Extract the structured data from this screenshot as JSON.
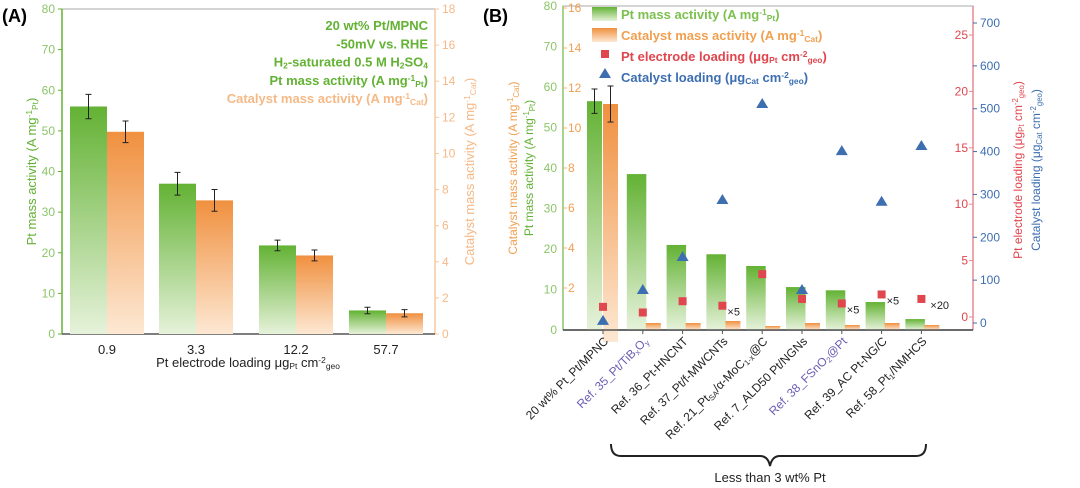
{
  "colors": {
    "green": "#63b234",
    "orange": "#f0903f",
    "red": "#e0464e",
    "blue": "#3c6eb0",
    "purple": "#6a5fb3",
    "black": "#222222"
  },
  "chart_data": [
    {
      "panel_label": "(A)",
      "type": "bar",
      "categories": [
        "0.9",
        "3.3",
        "12.2",
        "57.7"
      ],
      "xlabel": [
        {
          "t": "Pt electrode loading μg"
        },
        {
          "t": "Pt",
          "s": "sub"
        },
        {
          "t": " cm"
        },
        {
          "t": "-2",
          "s": "sup"
        },
        {
          "t": "geo",
          "s": "sub"
        }
      ],
      "ylabel_left": [
        {
          "t": "Pt mass activity (A mg"
        },
        {
          "t": "-1",
          "s": "sup"
        },
        {
          "t": "Pt",
          "s": "sub"
        },
        {
          "t": ")"
        }
      ],
      "ylabel_right": [
        {
          "t": "Catalyst mass activity (A mg"
        },
        {
          "t": "-1",
          "s": "sup"
        },
        {
          "t": "Cat",
          "s": "sub"
        },
        {
          "t": ")"
        }
      ],
      "ylim_left": [
        0,
        80
      ],
      "yticks_left": [
        0,
        10,
        20,
        30,
        40,
        50,
        60,
        70,
        80
      ],
      "ylim_right": [
        0,
        18
      ],
      "yticks_right": [
        0,
        2,
        4,
        6,
        8,
        10,
        12,
        14,
        16,
        18
      ],
      "series": [
        {
          "name": "Pt mass activity",
          "axis": "left",
          "values": [
            56,
            37,
            21.8,
            5.8
          ],
          "errors": [
            3,
            2.8,
            1.3,
            0.8
          ]
        },
        {
          "name": "Catalyst mass activity",
          "axis": "right",
          "values": [
            11.2,
            7.4,
            4.35,
            1.15
          ],
          "errors": [
            0.6,
            0.6,
            0.3,
            0.2
          ]
        }
      ],
      "annotations": [
        [
          {
            "t": "20 wt% Pt/MPNC"
          }
        ],
        [
          {
            "t": "-50mV vs. RHE"
          }
        ],
        [
          {
            "t": "H"
          },
          {
            "t": "2",
            "s": "sub"
          },
          {
            "t": "-saturated 0.5 M H"
          },
          {
            "t": "2",
            "s": "sub"
          },
          {
            "t": "SO"
          },
          {
            "t": "4",
            "s": "sub"
          }
        ],
        [
          {
            "t": "Pt mass activity (A mg"
          },
          {
            "t": "-1",
            "s": "sup"
          },
          {
            "t": "Pt",
            "s": "sub"
          },
          {
            "t": ")"
          }
        ],
        [
          {
            "t": "Catalyst mass activity (A mg"
          },
          {
            "t": "-1",
            "s": "sup"
          },
          {
            "t": "Cat",
            "s": "sub"
          },
          {
            "t": ")"
          }
        ]
      ]
    },
    {
      "panel_label": "(B)",
      "type": "bar+scatter",
      "categories": [
        [
          {
            "t": "20 wt% Pt_Pt/MPNC"
          }
        ],
        [
          {
            "t": "Ref. 35_Pt/TiB"
          },
          {
            "t": "x",
            "s": "sub"
          },
          {
            "t": "O"
          },
          {
            "t": "y",
            "s": "sub"
          }
        ],
        [
          {
            "t": "Ref. 36_Pt-HNCNT"
          }
        ],
        [
          {
            "t": "Ref. 37_Pt/f-MWCNTs"
          }
        ],
        [
          {
            "t": "Ref. 21_Pt"
          },
          {
            "t": "SA",
            "s": "sub"
          },
          {
            "t": "/α-MoC"
          },
          {
            "t": "1-x",
            "s": "sub"
          },
          {
            "t": "@C"
          }
        ],
        [
          {
            "t": "Ref. 7_ALD50 Pt/NGNs"
          }
        ],
        [
          {
            "t": "Ref. 38_FSnO"
          },
          {
            "t": "2",
            "s": "sub"
          },
          {
            "t": "@Pt"
          }
        ],
        [
          {
            "t": "Ref. 39_AC Pt-NG/C"
          }
        ],
        [
          {
            "t": "Ref. 58_Pt"
          },
          {
            "t": "1",
            "s": "sub"
          },
          {
            "t": "/NMHCS"
          }
        ]
      ],
      "highlighted_categories": [
        1,
        6
      ],
      "ylabel_left_outer": [
        {
          "t": "Pt mass activity (A mg"
        },
        {
          "t": "-1",
          "s": "sup"
        },
        {
          "t": "Pt",
          "s": "sub"
        },
        {
          "t": ")"
        }
      ],
      "ylabel_left_inner": [
        {
          "t": "Catalyst mass activity (A mg"
        },
        {
          "t": "-1",
          "s": "sup"
        },
        {
          "t": "Cat",
          "s": "sub"
        },
        {
          "t": ")"
        }
      ],
      "ylabel_right_inner": [
        {
          "t": "Pt electrode loading (μg"
        },
        {
          "t": "Pt",
          "s": "sub"
        },
        {
          "t": " cm"
        },
        {
          "t": "-2",
          "s": "sup"
        },
        {
          "t": "geo",
          "s": "sub"
        },
        {
          "t": ")"
        }
      ],
      "ylabel_right_outer": [
        {
          "t": "Catalyst loading (μg"
        },
        {
          "t": "Cat",
          "s": "sub"
        },
        {
          "t": " cm"
        },
        {
          "t": "-2",
          "s": "sup"
        },
        {
          "t": "geo",
          "s": "sub"
        },
        {
          "t": ")"
        }
      ],
      "axes": {
        "pt_mass": {
          "lim": [
            0,
            80
          ],
          "ticks": [
            0,
            10,
            20,
            30,
            40,
            50,
            60,
            70,
            80
          ]
        },
        "cat_mass": {
          "lim": [
            0,
            16
          ],
          "ticks": [
            2,
            4,
            6,
            8,
            10,
            12,
            14,
            16
          ]
        },
        "pt_loading": {
          "lim": [
            0,
            25.5
          ],
          "ticks": [
            0,
            5,
            10,
            15,
            20,
            25
          ]
        },
        "cat_loading": {
          "lim": [
            0,
            700
          ],
          "ticks": [
            0,
            100,
            200,
            300,
            400,
            500,
            600,
            700
          ]
        }
      },
      "series": [
        {
          "name": "Pt mass activity (A mg-1 Pt)",
          "kind": "bar",
          "axis": "pt_mass",
          "values": [
            56.5,
            38.5,
            21,
            18.7,
            15.8,
            10.6,
            9.8,
            6.9,
            2.7
          ],
          "errors": [
            3,
            null,
            null,
            null,
            null,
            null,
            null,
            null,
            null
          ]
        },
        {
          "name": "Catalyst mass activity (A mg-1 Cat)",
          "kind": "bar",
          "axis": "cat_mass",
          "values": [
            11.2,
            0.25,
            0.25,
            0.35,
            0.1,
            0.25,
            0.15,
            0.25,
            0.15
          ],
          "errors": [
            0.9,
            null,
            null,
            null,
            null,
            null,
            null,
            null,
            null
          ]
        },
        {
          "name": "Pt electrode loading (μgPt cm-2 geo)",
          "kind": "square",
          "axis": "pt_loading",
          "values": [
            0.9,
            0.4,
            1.4,
            1.0,
            3.8,
            1.6,
            1.2,
            2.0,
            1.6
          ],
          "multipliers": [
            "",
            "",
            "",
            "×5",
            "",
            "",
            "×5",
            "×5",
            "×20"
          ]
        },
        {
          "name": "Catalyst loading (μgCat cm-2 geo)",
          "kind": "triangle",
          "axis": "cat_loading",
          "values": [
            5,
            77,
            154,
            287,
            511,
            77,
            401,
            283,
            413
          ]
        }
      ],
      "legend": [
        [
          {
            "t": "Pt mass activity (A mg"
          },
          {
            "t": "-1",
            "s": "sup"
          },
          {
            "t": "Pt",
            "s": "sub"
          },
          {
            "t": ")"
          }
        ],
        [
          {
            "t": "Catalyst mass activity (A mg"
          },
          {
            "t": "-1",
            "s": "sup"
          },
          {
            "t": "Cat",
            "s": "sub"
          },
          {
            "t": ")"
          }
        ],
        [
          {
            "t": "Pt electrode loading (μg"
          },
          {
            "t": "Pt",
            "s": "sub"
          },
          {
            "t": " cm"
          },
          {
            "t": "-2",
            "s": "sup"
          },
          {
            "t": "geo",
            "s": "sub"
          },
          {
            "t": ")"
          }
        ],
        [
          {
            "t": "Catalyst loading (μg"
          },
          {
            "t": "Cat",
            "s": "sub"
          },
          {
            "t": " cm"
          },
          {
            "t": "-2",
            "s": "sup"
          },
          {
            "t": "geo",
            "s": "sub"
          },
          {
            "t": ")"
          }
        ]
      ],
      "legend_position": "top-left",
      "brace_label": "Less than 3 wt% Pt"
    }
  ]
}
